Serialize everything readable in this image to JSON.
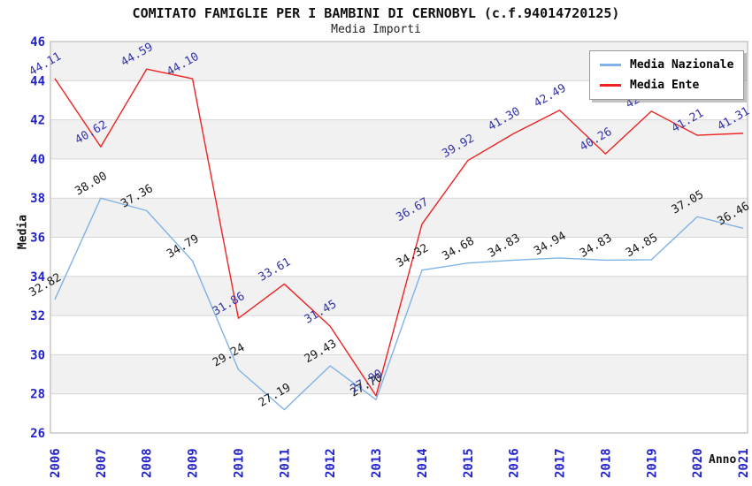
{
  "title": "COMITATO FAMIGLIE PER I BAMBINI DI CERNOBYL (c.f.94014720125)",
  "subtitle": "Media Importi",
  "chart_data": {
    "type": "line",
    "x": [
      "2006",
      "2007",
      "2008",
      "2009",
      "2010",
      "2011",
      "2012",
      "2013",
      "2014",
      "2015",
      "2016",
      "2017",
      "2018",
      "2019",
      "2020",
      "2021"
    ],
    "series": [
      {
        "name": "Media Nazionale",
        "color": "#7FB2E6",
        "label_color": "#1a1a1a",
        "values": [
          32.82,
          38.0,
          37.36,
          34.79,
          29.24,
          27.19,
          29.43,
          27.7,
          34.32,
          34.68,
          34.83,
          34.94,
          34.83,
          34.85,
          37.05,
          36.46
        ],
        "labels": [
          "32.82",
          "38.00",
          "37.36",
          "34.79",
          "29.24",
          "27.19",
          "29.43",
          "27.70",
          "34.32",
          "34.68",
          "34.83",
          "34.94",
          "34.83",
          "34.85",
          "37.05",
          "36.46"
        ]
      },
      {
        "name": "Media Ente",
        "color": "#EE2222",
        "label_color": "#3333AA",
        "values": [
          44.11,
          40.62,
          44.59,
          44.1,
          31.86,
          33.61,
          31.45,
          27.9,
          36.67,
          39.92,
          41.3,
          42.49,
          40.26,
          42.44,
          41.21,
          41.31
        ],
        "labels": [
          "44.11",
          "40.62",
          "44.59",
          "44.10",
          "31.86",
          "33.61",
          "31.45",
          "27.90",
          "36.67",
          "39.92",
          "41.30",
          "42.49",
          "40.26",
          "42.44",
          "41.21",
          "41.31"
        ]
      }
    ],
    "xlabel": "Anno",
    "ylabel": "Media",
    "ylim": [
      26,
      46
    ],
    "ytick_step": 2,
    "tick_color": "#2222CC",
    "grid": "horizontal",
    "banding": true,
    "band_color": "#f1f1f1",
    "gridline_color": "#d6d6d6",
    "frame_color": "#adadad",
    "legend_position": "top-right"
  }
}
